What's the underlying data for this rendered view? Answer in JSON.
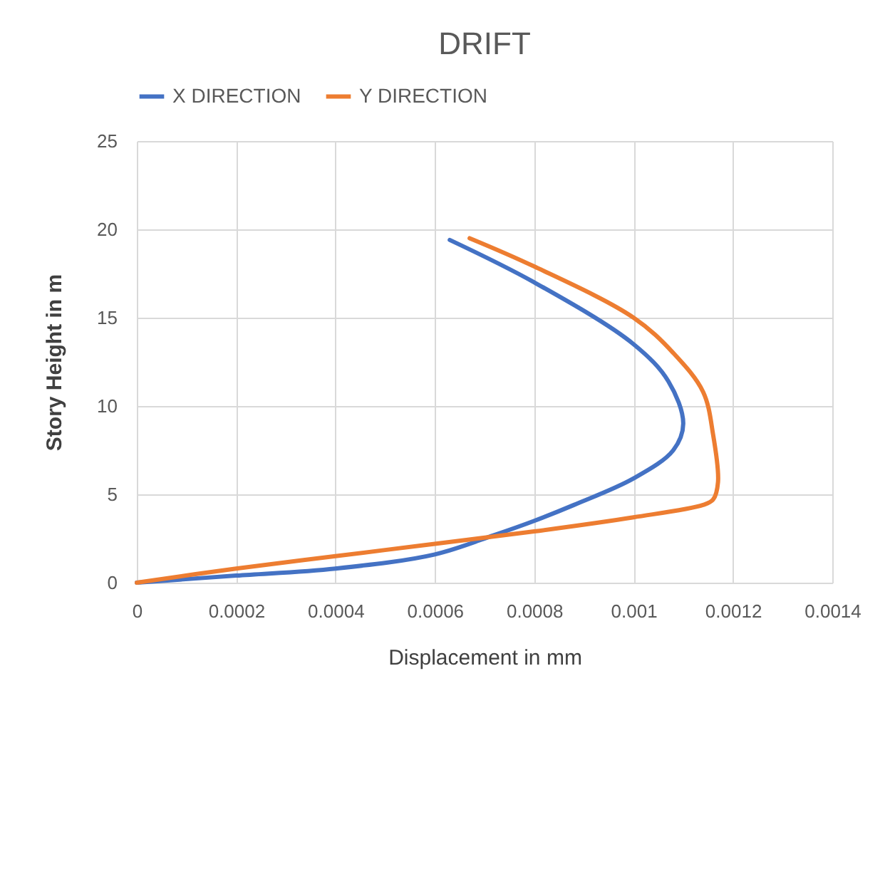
{
  "chart_data": {
    "type": "line",
    "title": "DRIFT",
    "xlabel": "Displacement in mm",
    "ylabel": "Story Height in m",
    "xlim": [
      0,
      0.0014
    ],
    "xticks": [
      0,
      0.0002,
      0.0004,
      0.0006,
      0.0008,
      0.001,
      0.0012,
      0.0014
    ],
    "ylim": [
      0,
      25
    ],
    "yticks": [
      0,
      5,
      10,
      15,
      20,
      25
    ],
    "grid": true,
    "legend": "top",
    "marker": "none",
    "line_style": "solid",
    "series": [
      {
        "name": "X DIRECTION",
        "color": "#4472c4",
        "x": [
          0,
          0.0002,
          0.0004,
          0.0006,
          0.00072,
          0.0008,
          0.00088,
          0.001,
          0.00108,
          0.0011,
          0.00107,
          0.001,
          0.0008,
          0.00063
        ],
        "values": [
          0,
          0.4,
          0.8,
          1.6,
          2.7,
          3.5,
          4.4,
          5.9,
          7.5,
          9.0,
          11.4,
          13.5,
          17.0,
          19.4
        ]
      },
      {
        "name": "Y DIRECTION",
        "color": "#ed7d31",
        "x": [
          0,
          0.0002,
          0.0004,
          0.0006,
          0.0008,
          0.001,
          0.00114,
          0.00116,
          0.00117,
          0.00116,
          0.00114,
          0.00108,
          0.001,
          0.0008,
          0.00067
        ],
        "values": [
          0,
          0.8,
          1.5,
          2.2,
          2.9,
          3.7,
          4.4,
          4.7,
          5.7,
          8.4,
          10.8,
          13.0,
          15.0,
          17.9,
          19.5
        ]
      }
    ]
  }
}
